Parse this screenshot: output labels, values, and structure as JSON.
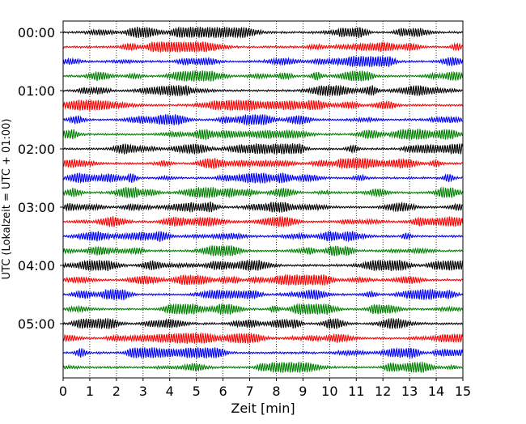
{
  "chart_data": {
    "type": "line",
    "title": "",
    "xlabel": "Zeit  [min]",
    "ylabel": "UTC (Lokalzeit = UTC + 01:00)",
    "xlim": [
      0,
      15
    ],
    "x_ticks": [
      0,
      1,
      2,
      3,
      4,
      5,
      6,
      7,
      8,
      9,
      10,
      11,
      12,
      13,
      14,
      15
    ],
    "x_tick_labels": [
      "0",
      "1",
      "2",
      "3",
      "4",
      "5",
      "6",
      "7",
      "8",
      "9",
      "10",
      "11",
      "12",
      "13",
      "14",
      "15"
    ],
    "grid": "vertical dotted",
    "legend": "none",
    "trace_minutes": 15,
    "trace_start_utc": "00:00",
    "trace_count": 24,
    "trace_colors": [
      "#000000",
      "#ff0000",
      "#0000ff",
      "#008000"
    ],
    "y_ticks": [
      {
        "label": "00:00",
        "trace_index": 0
      },
      {
        "label": "01:00",
        "trace_index": 4
      },
      {
        "label": "02:00",
        "trace_index": 8
      },
      {
        "label": "03:00",
        "trace_index": 12
      },
      {
        "label": "04:00",
        "trace_index": 16
      },
      {
        "label": "05:00",
        "trace_index": 20
      }
    ],
    "series": [
      {
        "start_utc": "00:00",
        "color": "#000000"
      },
      {
        "start_utc": "00:15",
        "color": "#ff0000"
      },
      {
        "start_utc": "00:30",
        "color": "#0000ff"
      },
      {
        "start_utc": "00:45",
        "color": "#008000"
      },
      {
        "start_utc": "01:00",
        "color": "#000000"
      },
      {
        "start_utc": "01:15",
        "color": "#ff0000"
      },
      {
        "start_utc": "01:30",
        "color": "#0000ff"
      },
      {
        "start_utc": "01:45",
        "color": "#008000"
      },
      {
        "start_utc": "02:00",
        "color": "#000000"
      },
      {
        "start_utc": "02:15",
        "color": "#ff0000"
      },
      {
        "start_utc": "02:30",
        "color": "#0000ff"
      },
      {
        "start_utc": "02:45",
        "color": "#008000"
      },
      {
        "start_utc": "03:00",
        "color": "#000000"
      },
      {
        "start_utc": "03:15",
        "color": "#ff0000"
      },
      {
        "start_utc": "03:30",
        "color": "#0000ff"
      },
      {
        "start_utc": "03:45",
        "color": "#008000"
      },
      {
        "start_utc": "04:00",
        "color": "#000000"
      },
      {
        "start_utc": "04:15",
        "color": "#ff0000"
      },
      {
        "start_utc": "04:30",
        "color": "#0000ff"
      },
      {
        "start_utc": "04:45",
        "color": "#008000"
      },
      {
        "start_utc": "05:00",
        "color": "#000000"
      },
      {
        "start_utc": "05:15",
        "color": "#ff0000"
      },
      {
        "start_utc": "05:30",
        "color": "#0000ff"
      },
      {
        "start_utc": "05:45",
        "color": "#008000"
      }
    ]
  }
}
